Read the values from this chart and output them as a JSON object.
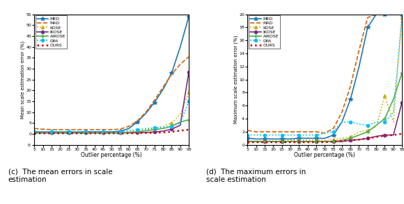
{
  "x_ticks": [
    5,
    10,
    15,
    20,
    25,
    30,
    35,
    40,
    45,
    50,
    55,
    60,
    65,
    70,
    75,
    80,
    85,
    90,
    95
  ],
  "xlabel": "Outlier percentage (%)",
  "left_ylabel": "Mean scale estimation error (%)",
  "right_ylabel": "Maximum scale estimation error (%)",
  "left_ylim": [
    -5,
    55
  ],
  "right_ylim": [
    0,
    20
  ],
  "left_yticks": [
    -5,
    0,
    5,
    10,
    15,
    20,
    25,
    30,
    35,
    40,
    45,
    50,
    55
  ],
  "right_yticks": [
    0,
    2,
    4,
    6,
    8,
    10,
    12,
    14,
    16,
    18,
    20
  ],
  "caption_left": "(c)  The mean errors in scale\nestimation",
  "caption_right": "(d)  The maximum errors in\nscale estimation",
  "methods": [
    "MED",
    "MAD",
    "KOSE",
    "IKOSE",
    "AIKOSE",
    "DPA",
    "OURS"
  ],
  "left_data": {
    "MED": [
      1.0,
      0.9,
      0.9,
      0.9,
      0.9,
      0.9,
      1.0,
      1.0,
      1.0,
      1.0,
      1.2,
      2.5,
      5.5,
      9.5,
      14.5,
      20.5,
      28.0,
      40.0,
      54.0
    ],
    "MAD": [
      2.5,
      2.2,
      2.0,
      2.0,
      2.0,
      2.0,
      2.0,
      2.0,
      2.0,
      2.0,
      2.2,
      3.5,
      6.0,
      10.0,
      15.5,
      21.5,
      27.5,
      32.0,
      35.5
    ],
    "KOSE": [
      0.5,
      0.5,
      0.5,
      0.5,
      0.5,
      0.5,
      0.5,
      0.5,
      0.5,
      0.5,
      0.7,
      1.0,
      1.5,
      2.0,
      2.5,
      3.5,
      5.0,
      9.0,
      19.0
    ],
    "IKOSE": [
      0.5,
      0.5,
      0.5,
      0.5,
      0.5,
      0.5,
      0.5,
      0.5,
      0.5,
      0.5,
      0.5,
      0.5,
      0.6,
      0.7,
      0.9,
      1.3,
      2.2,
      4.0,
      28.5
    ],
    "AIKOSE": [
      0.5,
      0.5,
      0.5,
      0.5,
      0.5,
      0.5,
      0.5,
      0.5,
      0.5,
      0.5,
      0.5,
      0.7,
      1.0,
      1.5,
      2.0,
      2.5,
      3.5,
      5.5,
      6.5
    ],
    "DPA": [
      1.0,
      1.0,
      1.0,
      1.0,
      1.0,
      1.0,
      1.0,
      1.0,
      1.0,
      1.0,
      1.0,
      1.5,
      2.0,
      2.5,
      2.8,
      3.0,
      3.5,
      5.0,
      15.0
    ],
    "OURS": [
      0.3,
      0.3,
      0.3,
      0.3,
      0.3,
      0.3,
      0.3,
      0.3,
      0.3,
      0.3,
      0.3,
      0.3,
      0.4,
      0.5,
      0.6,
      0.7,
      1.0,
      1.5,
      2.0
    ]
  },
  "right_data": {
    "MED": [
      1.0,
      0.9,
      0.9,
      0.9,
      0.9,
      0.9,
      1.0,
      1.0,
      1.0,
      1.0,
      1.5,
      3.5,
      7.0,
      12.0,
      18.0,
      20.0,
      20.0,
      20.0,
      20.0
    ],
    "MAD": [
      2.2,
      2.0,
      2.0,
      2.0,
      2.0,
      2.0,
      2.0,
      2.0,
      2.0,
      1.8,
      2.5,
      5.0,
      9.0,
      14.5,
      19.5,
      20.0,
      20.0,
      20.0,
      20.0
    ],
    "KOSE": [
      0.6,
      0.6,
      0.6,
      0.6,
      0.6,
      0.7,
      0.7,
      0.7,
      0.7,
      0.7,
      0.8,
      1.0,
      1.2,
      2.0,
      2.2,
      2.8,
      7.5,
      3.5,
      19.5
    ],
    "IKOSE": [
      0.5,
      0.5,
      0.5,
      0.5,
      0.5,
      0.5,
      0.5,
      0.5,
      0.5,
      0.5,
      0.5,
      0.5,
      0.7,
      0.8,
      1.0,
      1.3,
      1.5,
      1.5,
      6.5
    ],
    "AIKOSE": [
      0.5,
      0.5,
      0.5,
      0.5,
      0.5,
      0.5,
      0.5,
      0.5,
      0.5,
      0.5,
      0.5,
      0.7,
      1.0,
      1.5,
      2.0,
      3.0,
      4.0,
      7.0,
      11.0
    ],
    "DPA": [
      1.5,
      1.5,
      1.5,
      1.5,
      1.5,
      1.5,
      1.5,
      1.5,
      1.5,
      1.8,
      2.0,
      3.5,
      3.5,
      3.2,
      3.0,
      3.5,
      3.5,
      5.0,
      19.8
    ],
    "OURS": [
      0.4,
      0.4,
      0.4,
      0.4,
      0.4,
      0.4,
      0.4,
      0.4,
      0.4,
      0.4,
      0.5,
      0.6,
      0.7,
      0.8,
      1.0,
      1.2,
      1.4,
      1.5,
      1.7
    ]
  },
  "method_styles": {
    "MED": {
      "color": "#1f77b4",
      "ls": "-",
      "marker": "*",
      "lw": 1.2,
      "ms": 4,
      "markevery": 2
    },
    "MAD": {
      "color": "#d95f02",
      "ls": "--",
      "marker": "",
      "lw": 1.2,
      "ms": 0,
      "markevery": 1
    },
    "KOSE": {
      "color": "#ccaa00",
      "ls": ":",
      "marker": "^",
      "lw": 1.2,
      "ms": 3,
      "markevery": 2
    },
    "IKOSE": {
      "color": "#7b2d8b",
      "ls": "-",
      "marker": "o",
      "lw": 1.2,
      "ms": 3,
      "markevery": 2
    },
    "AIKOSE": {
      "color": "#4daf4a",
      "ls": "-",
      "marker": "+",
      "lw": 1.2,
      "ms": 4,
      "markevery": 2
    },
    "DPA": {
      "color": "#00bfff",
      "ls": ":",
      "marker": "o",
      "lw": 1.2,
      "ms": 3,
      "markevery": 2
    },
    "OURS": {
      "color": "#cc0000",
      "ls": ":",
      "marker": "",
      "lw": 1.8,
      "ms": 0,
      "markevery": 1
    }
  }
}
